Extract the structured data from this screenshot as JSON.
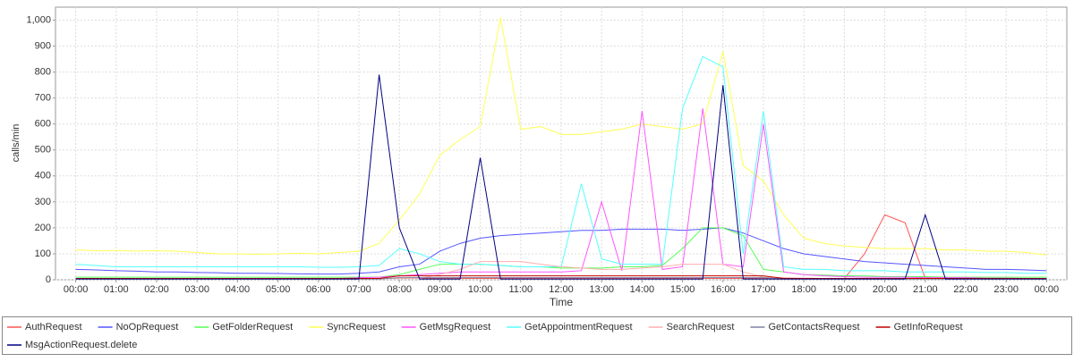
{
  "chart_data": {
    "type": "line",
    "xlabel": "Time",
    "ylabel": "calls/min",
    "x": [
      0,
      0.5,
      1,
      1.5,
      2,
      2.5,
      3,
      3.5,
      4,
      4.5,
      5,
      5.5,
      6,
      6.5,
      7,
      7.5,
      8,
      8.5,
      9,
      9.5,
      10,
      10.5,
      11,
      11.5,
      12,
      12.5,
      13,
      13.5,
      14,
      14.5,
      15,
      15.5,
      16,
      16.5,
      17,
      17.5,
      18,
      18.5,
      19,
      19.5,
      20,
      20.5,
      21,
      21.5,
      22,
      22.5,
      23,
      23.5,
      24
    ],
    "xlim": [
      -0.5,
      24.5
    ],
    "xticks": [
      {
        "value": 0,
        "label": "00:00"
      },
      {
        "value": 1,
        "label": "01:00"
      },
      {
        "value": 2,
        "label": "02:00"
      },
      {
        "value": 3,
        "label": "03:00"
      },
      {
        "value": 4,
        "label": "04:00"
      },
      {
        "value": 5,
        "label": "05:00"
      },
      {
        "value": 6,
        "label": "06:00"
      },
      {
        "value": 7,
        "label": "07:00"
      },
      {
        "value": 8,
        "label": "08:00"
      },
      {
        "value": 9,
        "label": "09:00"
      },
      {
        "value": 10,
        "label": "10:00"
      },
      {
        "value": 11,
        "label": "11:00"
      },
      {
        "value": 12,
        "label": "12:00"
      },
      {
        "value": 13,
        "label": "13:00"
      },
      {
        "value": 14,
        "label": "14:00"
      },
      {
        "value": 15,
        "label": "15:00"
      },
      {
        "value": 16,
        "label": "16:00"
      },
      {
        "value": 17,
        "label": "17:00"
      },
      {
        "value": 18,
        "label": "18:00"
      },
      {
        "value": 19,
        "label": "19:00"
      },
      {
        "value": 20,
        "label": "20:00"
      },
      {
        "value": 21,
        "label": "21:00"
      },
      {
        "value": 22,
        "label": "22:00"
      },
      {
        "value": 23,
        "label": "23:00"
      },
      {
        "value": 24,
        "label": "00:00"
      }
    ],
    "ylim": [
      0,
      1050
    ],
    "yticks": [
      0,
      100,
      200,
      300,
      400,
      500,
      600,
      700,
      800,
      900,
      {
        "value": 1000,
        "label": "1,000"
      }
    ],
    "grid": true,
    "series": [
      {
        "name": "AuthRequest",
        "color": "#ff5555",
        "values": [
          5,
          5,
          5,
          5,
          5,
          5,
          5,
          5,
          5,
          5,
          5,
          5,
          5,
          5,
          5,
          5,
          5,
          5,
          5,
          5,
          5,
          5,
          5,
          5,
          5,
          5,
          5,
          5,
          5,
          5,
          5,
          5,
          5,
          5,
          5,
          5,
          5,
          5,
          5,
          100,
          250,
          220,
          5,
          5,
          5,
          5,
          5,
          5,
          5
        ]
      },
      {
        "name": "NoOpRequest",
        "color": "#5555ff",
        "values": [
          40,
          38,
          35,
          33,
          30,
          30,
          28,
          27,
          25,
          25,
          24,
          23,
          22,
          22,
          25,
          30,
          50,
          60,
          110,
          140,
          160,
          170,
          175,
          180,
          185,
          190,
          190,
          195,
          195,
          195,
          190,
          195,
          200,
          180,
          150,
          120,
          100,
          90,
          80,
          70,
          65,
          60,
          55,
          50,
          45,
          40,
          40,
          38,
          35
        ]
      },
      {
        "name": "GetFolderRequest",
        "color": "#55ff55",
        "values": [
          10,
          10,
          10,
          10,
          10,
          10,
          10,
          10,
          10,
          10,
          10,
          10,
          10,
          10,
          10,
          10,
          20,
          40,
          60,
          60,
          60,
          55,
          50,
          50,
          45,
          45,
          45,
          50,
          50,
          55,
          120,
          200,
          200,
          170,
          40,
          30,
          20,
          18,
          15,
          15,
          12,
          12,
          12,
          10,
          10,
          10,
          10,
          10,
          10
        ]
      },
      {
        "name": "SyncRequest",
        "color": "#ffff55",
        "values": [
          115,
          112,
          113,
          110,
          112,
          110,
          105,
          100,
          100,
          98,
          100,
          102,
          100,
          105,
          110,
          140,
          230,
          330,
          480,
          540,
          590,
          1010,
          580,
          590,
          560,
          560,
          570,
          580,
          600,
          590,
          580,
          600,
          880,
          440,
          380,
          250,
          160,
          140,
          130,
          125,
          120,
          120,
          120,
          115,
          115,
          110,
          110,
          105,
          95
        ]
      },
      {
        "name": "GetMsgRequest",
        "color": "#ff55ff",
        "values": [
          5,
          5,
          5,
          5,
          5,
          5,
          5,
          5,
          5,
          5,
          5,
          5,
          5,
          5,
          8,
          10,
          15,
          20,
          25,
          30,
          30,
          30,
          30,
          30,
          30,
          35,
          300,
          35,
          650,
          40,
          50,
          660,
          60,
          50,
          600,
          30,
          20,
          15,
          12,
          10,
          10,
          10,
          8,
          8,
          8,
          6,
          6,
          5,
          5
        ]
      },
      {
        "name": "GetAppointmentRequest",
        "color": "#55ffff",
        "values": [
          60,
          55,
          50,
          50,
          50,
          50,
          50,
          50,
          50,
          50,
          50,
          50,
          48,
          48,
          50,
          55,
          120,
          100,
          70,
          60,
          60,
          55,
          50,
          50,
          50,
          370,
          80,
          60,
          60,
          60,
          660,
          860,
          820,
          100,
          650,
          50,
          40,
          40,
          35,
          35,
          35,
          30,
          30,
          30,
          30,
          28,
          28,
          25,
          25
        ]
      },
      {
        "name": "SearchRequest",
        "color": "#ffafaf",
        "values": [
          5,
          5,
          5,
          5,
          5,
          5,
          5,
          5,
          5,
          5,
          5,
          5,
          5,
          5,
          5,
          5,
          5,
          5,
          20,
          40,
          70,
          70,
          70,
          60,
          50,
          45,
          40,
          40,
          45,
          50,
          60,
          60,
          60,
          30,
          10,
          8,
          6,
          5,
          5,
          5,
          5,
          5,
          5,
          5,
          5,
          5,
          5,
          5,
          5
        ]
      },
      {
        "name": "GetContactsRequest",
        "color": "#8080a0",
        "values": [
          3,
          3,
          3,
          3,
          3,
          3,
          3,
          3,
          3,
          3,
          3,
          3,
          3,
          3,
          3,
          3,
          8,
          8,
          8,
          8,
          8,
          8,
          8,
          8,
          8,
          8,
          8,
          8,
          8,
          8,
          8,
          8,
          8,
          8,
          8,
          3,
          3,
          3,
          3,
          3,
          3,
          3,
          3,
          3,
          3,
          3,
          3,
          3,
          3
        ]
      },
      {
        "name": "GetInfoRequest",
        "color": "#c00000",
        "values": [
          5,
          5,
          5,
          5,
          5,
          5,
          5,
          5,
          5,
          5,
          5,
          5,
          5,
          5,
          5,
          5,
          15,
          15,
          15,
          15,
          15,
          15,
          15,
          15,
          15,
          15,
          15,
          15,
          15,
          15,
          15,
          15,
          15,
          15,
          15,
          5,
          5,
          5,
          5,
          5,
          5,
          5,
          5,
          5,
          5,
          5,
          5,
          5,
          5
        ]
      },
      {
        "name": "MsgActionRequest.delete",
        "color": "#000080",
        "values": [
          3,
          3,
          3,
          3,
          3,
          3,
          3,
          3,
          3,
          3,
          3,
          3,
          3,
          3,
          3,
          790,
          200,
          3,
          3,
          3,
          470,
          3,
          3,
          3,
          3,
          3,
          3,
          3,
          3,
          3,
          3,
          3,
          750,
          3,
          3,
          3,
          3,
          3,
          3,
          3,
          3,
          3,
          250,
          3,
          3,
          3,
          3,
          3,
          3
        ]
      }
    ]
  }
}
